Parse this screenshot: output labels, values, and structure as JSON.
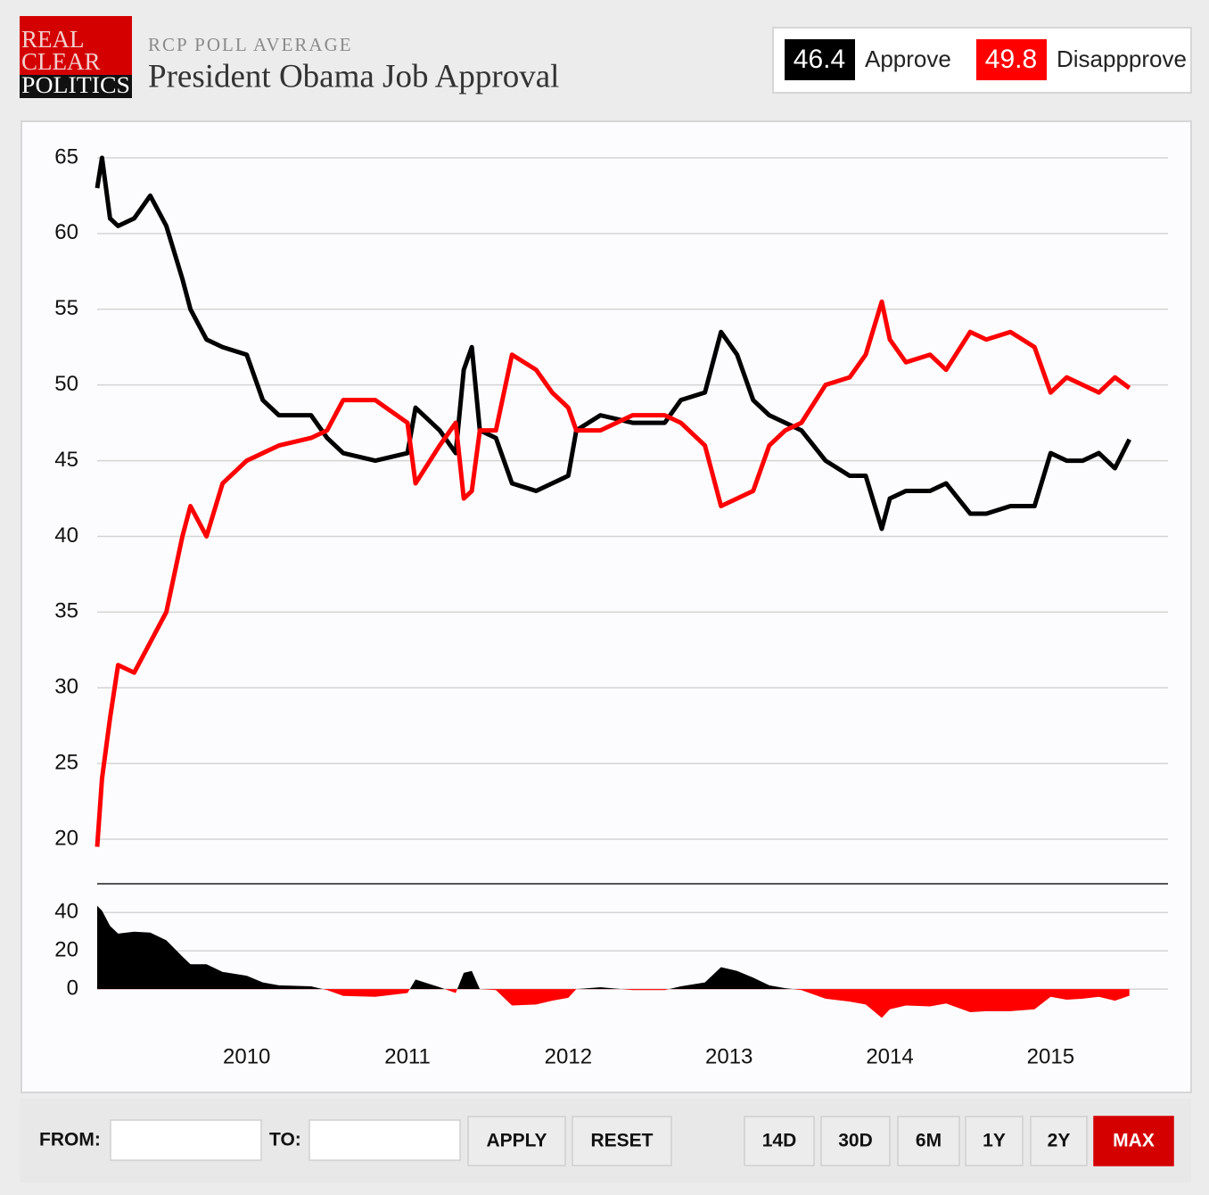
{
  "header": {
    "brand": [
      "REAL",
      "CLEAR",
      "POLITICS"
    ],
    "kicker": "RCP POLL AVERAGE",
    "title": "President Obama Job Approval"
  },
  "chart_data": {
    "type": "line",
    "x": [
      2009.07,
      2009.1,
      2009.15,
      2009.2,
      2009.3,
      2009.4,
      2009.5,
      2009.6,
      2009.65,
      2009.75,
      2009.85,
      2010.0,
      2010.1,
      2010.2,
      2010.4,
      2010.5,
      2010.6,
      2010.8,
      2011.0,
      2011.05,
      2011.2,
      2011.3,
      2011.35,
      2011.4,
      2011.45,
      2011.55,
      2011.65,
      2011.8,
      2011.9,
      2012.0,
      2012.05,
      2012.2,
      2012.4,
      2012.6,
      2012.7,
      2012.85,
      2012.95,
      2013.05,
      2013.15,
      2013.25,
      2013.35,
      2013.45,
      2013.6,
      2013.75,
      2013.85,
      2013.95,
      2014.0,
      2014.1,
      2014.25,
      2014.35,
      2014.5,
      2014.6,
      2014.75,
      2014.9,
      2015.0,
      2015.1,
      2015.2,
      2015.3,
      2015.4,
      2015.49
    ],
    "series": [
      {
        "name": "Approve",
        "color": "#000000",
        "values": [
          63,
          65,
          61,
          60.5,
          61,
          62.5,
          60.5,
          57,
          55,
          53,
          52.5,
          52,
          49,
          48,
          48,
          46.5,
          45.5,
          45,
          45.5,
          48.5,
          47,
          45.5,
          51,
          52.5,
          47,
          46.5,
          43.5,
          43,
          43.5,
          44,
          47,
          48,
          47.5,
          47.5,
          49,
          49.5,
          53.5,
          52,
          49,
          48,
          47.5,
          47,
          45,
          44,
          44,
          40.5,
          42.5,
          43,
          43,
          43.5,
          41.5,
          41.5,
          42,
          42,
          45.5,
          45,
          45,
          45.5,
          44.5,
          46.4
        ]
      },
      {
        "name": "Disappprove",
        "color": "#ff0000",
        "values": [
          19.5,
          24,
          28,
          31.5,
          31,
          33,
          35,
          40,
          42,
          40,
          43.5,
          45,
          45.5,
          46,
          46.5,
          47,
          49,
          49,
          47.5,
          43.5,
          46,
          47.5,
          42.5,
          43,
          47,
          47,
          52,
          51,
          49.5,
          48.5,
          47,
          47,
          48,
          48,
          47.5,
          46,
          42,
          42.5,
          43,
          46,
          47,
          47.5,
          50,
          50.5,
          52,
          55.5,
          53,
          51.5,
          52,
          51,
          53.5,
          53,
          53.5,
          52.5,
          49.5,
          50.5,
          50,
          49.5,
          50.5,
          49.8
        ]
      },
      {
        "type": "area",
        "axis": "y2",
        "color": "#000000",
        "negative_color": "#ff0000",
        "values": [
          43.5,
          41,
          33,
          29,
          30,
          29.5,
          25.5,
          17,
          13,
          13,
          9,
          7,
          3.5,
          2,
          1.5,
          -0.5,
          -3.5,
          -4,
          -2,
          5,
          1,
          -2,
          8.5,
          9.5,
          0,
          -0.5,
          -8.5,
          -8,
          -6,
          -4.5,
          0,
          1,
          -0.5,
          -0.5,
          1.5,
          3.5,
          11.5,
          9.5,
          6,
          2,
          0.5,
          -0.5,
          -5,
          -6.5,
          -8,
          -15,
          -10.5,
          -8.5,
          -9,
          -7.5,
          -12,
          -11.5,
          -11.5,
          -10.5,
          -4,
          -5.5,
          -5,
          -4,
          -6,
          -3.4
        ]
      }
    ],
    "xlim": [
      2009.07,
      2015.73
    ],
    "xticks": [
      2010,
      2011,
      2012,
      2013,
      2014,
      2015
    ],
    "ylim": [
      18,
      66
    ],
    "yticks": [
      20,
      25,
      30,
      35,
      40,
      45,
      50,
      55,
      60,
      65
    ],
    "y2lim": [
      -19,
      55
    ],
    "y2ticks": [
      0,
      20,
      40
    ],
    "grid": true
  },
  "controls": {
    "from": "FROM:",
    "to": "TO:",
    "actions": [
      "APPLY",
      "RESET"
    ],
    "ranges": [
      "14D",
      "30D",
      "6M",
      "1Y",
      "2Y",
      "MAX"
    ],
    "active_range": 5
  }
}
